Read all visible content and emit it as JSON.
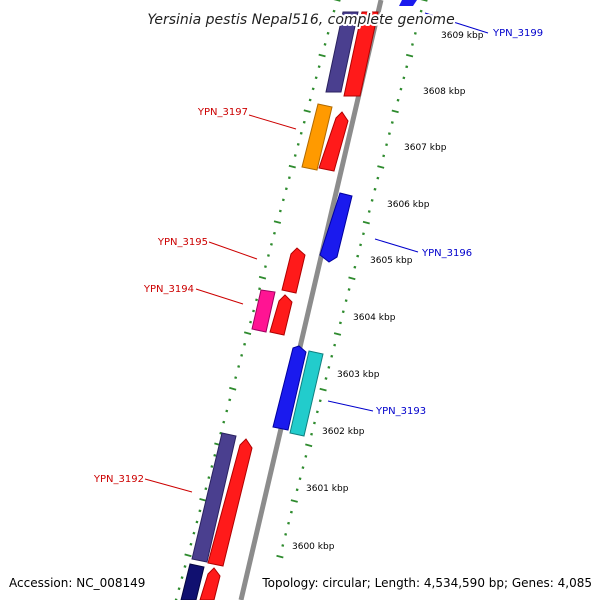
{
  "title": "Yersinia pestis Nepal516, complete genome",
  "footer": {
    "accession": "Accession: NC_008149",
    "summary": "Topology: circular; Length: 4,534,590 bp; Genes: 4,085"
  },
  "colors": {
    "backbone": "#8c8c8c",
    "tick": "#2e8b2e",
    "label_forward": "#0000cc",
    "label_reverse": "#cc0000",
    "cds_red": "#ff1a1a",
    "cds_blue": "#1a1aee",
    "cds_slate": "#4a3f8f",
    "cds_orange": "#ff9a00",
    "cds_magenta": "#ff1493",
    "cds_cyan": "#22cccc",
    "cds_navy": "#101070"
  },
  "kbp_labels": [
    "3600 kbp",
    "3601 kbp",
    "3602 kbp",
    "3603 kbp",
    "3604 kbp",
    "3605 kbp",
    "3606 kbp",
    "3607 kbp",
    "3608 kbp",
    "3609 kbp"
  ],
  "gene_labels": {
    "ypn_3199": "YPN_3199",
    "ypn_3197": "YPN_3197",
    "ypn_3196": "YPN_3196",
    "ypn_3195": "YPN_3195",
    "ypn_3194": "YPN_3194",
    "ypn_3193": "YPN_3193",
    "ypn_3192": "YPN_3192"
  }
}
